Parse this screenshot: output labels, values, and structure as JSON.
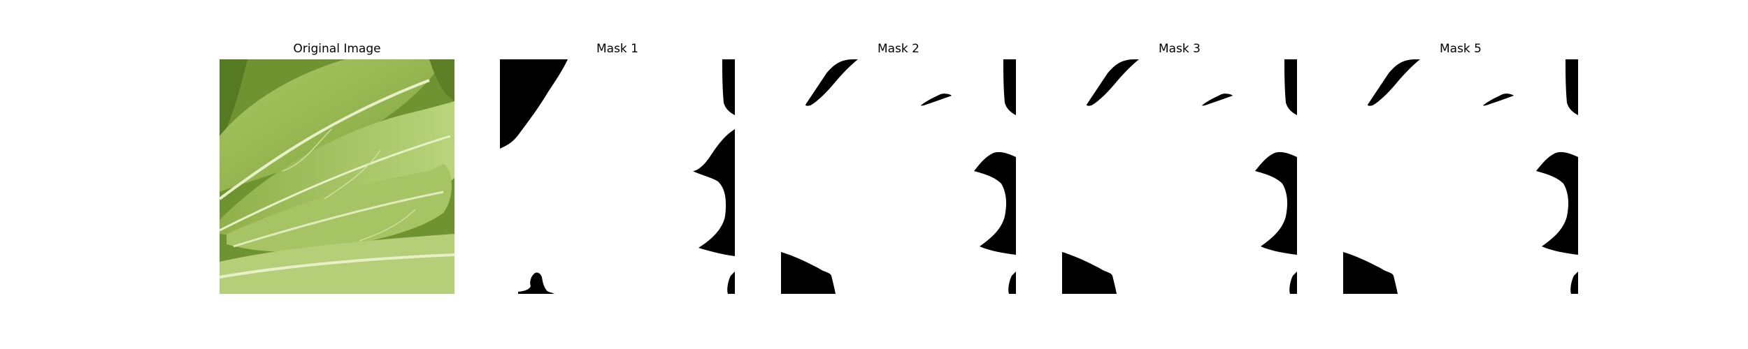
{
  "figure": {
    "panels": [
      {
        "title": "Original Image",
        "kind": "photo",
        "subject": "leaf-photo"
      },
      {
        "title": "Mask 1",
        "kind": "mask"
      },
      {
        "title": "Mask 2",
        "kind": "mask"
      },
      {
        "title": "Mask 3",
        "kind": "mask"
      },
      {
        "title": "Mask 5",
        "kind": "mask"
      }
    ]
  },
  "colors": {
    "background": "#ffffff",
    "mask_foreground": "#ffffff",
    "mask_background": "#000000",
    "leaf_light": "#b3cf74",
    "leaf_mid": "#92b44a",
    "leaf_dark": "#5d7f25",
    "leaf_vein": "#e8f0c8"
  }
}
